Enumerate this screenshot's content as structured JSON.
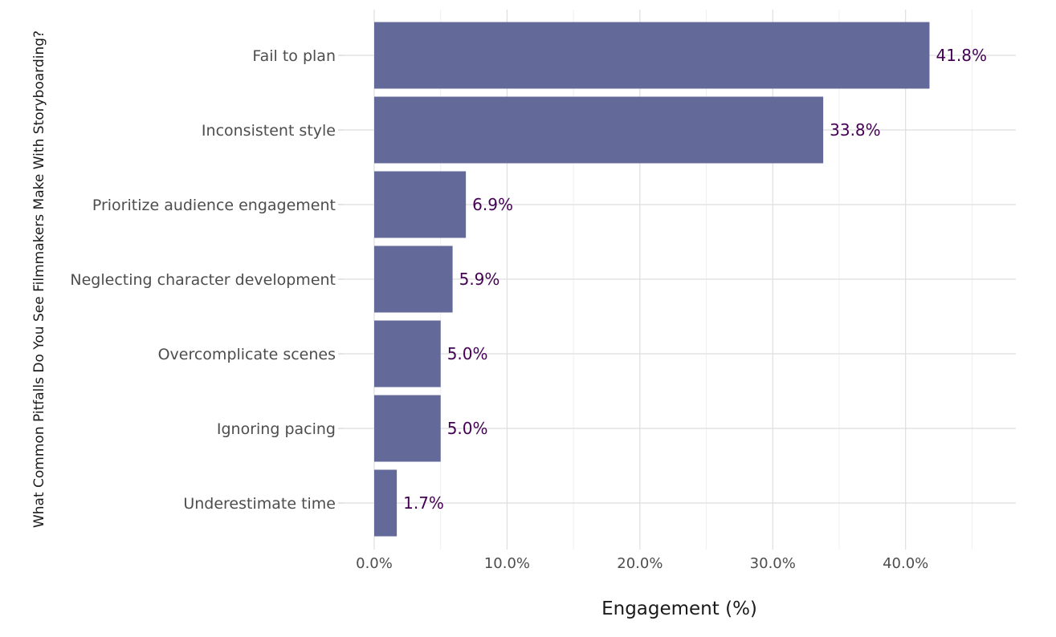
{
  "chart_data": {
    "type": "bar",
    "orientation": "horizontal",
    "categories": [
      "Fail to plan",
      "Inconsistent style",
      "Prioritize audience engagement",
      "Neglecting character development",
      "Overcomplicate scenes",
      "Ignoring pacing",
      "Underestimate time"
    ],
    "values": [
      41.8,
      33.8,
      6.9,
      5.9,
      5.0,
      5.0,
      1.7
    ],
    "value_labels": [
      "41.8%",
      "33.8%",
      "6.9%",
      "5.9%",
      "5.0%",
      "5.0%",
      "1.7%"
    ],
    "xlabel": "Engagement (%)",
    "ylabel": "What Common Pitfalls Do You See Filmmakers Make With Storyboarding?",
    "xlim": [
      0,
      48.3
    ],
    "xticks": [
      0,
      10,
      20,
      30,
      40
    ],
    "xtick_labels": [
      "0.0%",
      "10.0%",
      "20.0%",
      "30.0%",
      "40.0%"
    ],
    "grid": true,
    "legend": "none",
    "colors": {
      "bar": "#636a9a",
      "data_label": "#440154"
    }
  }
}
